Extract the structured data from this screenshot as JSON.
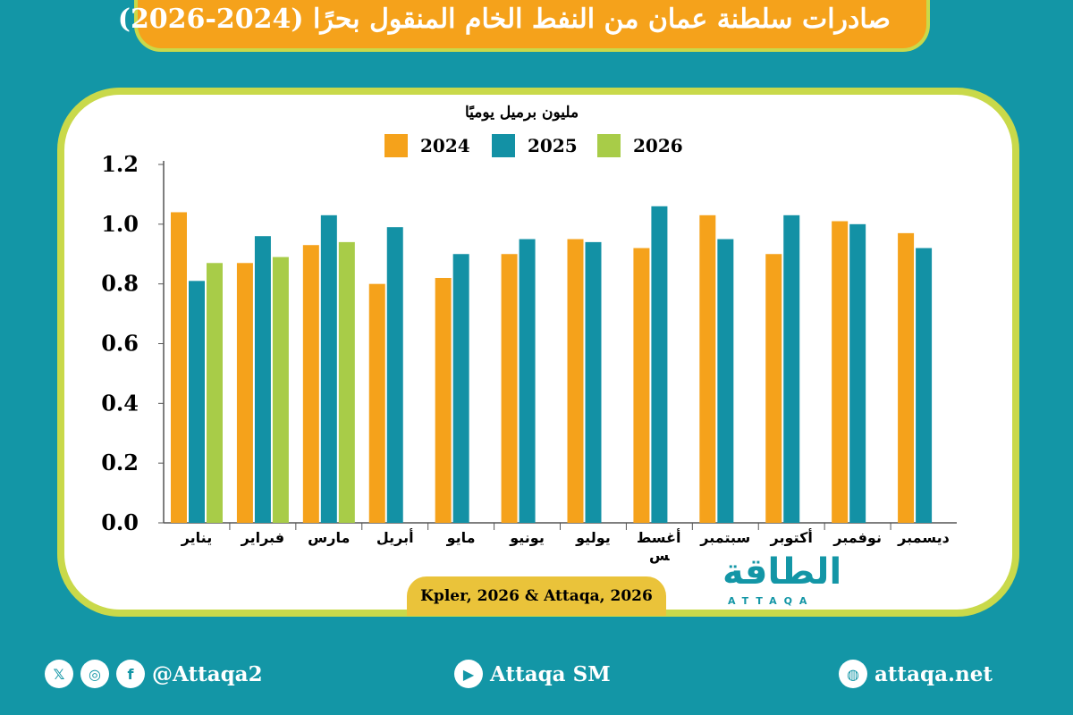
{
  "title": "صادرات سلطنة عمان من النفط الخام المنقول بحرًا (2024-2026)",
  "source": "Kpler, 2026 & Attaqa, 2026",
  "logo": {
    "text": "الطاقة",
    "sub": "ATTAQA"
  },
  "footer": {
    "social": "@Attaqa2",
    "youtube": "Attaqa SM",
    "website": "attaqa.net"
  },
  "chart_data": {
    "type": "bar",
    "ylabel": "مليون برميل يوميًا",
    "ylim": [
      0,
      1.2
    ],
    "yticks": [
      "0.0",
      "0.2",
      "0.4",
      "0.6",
      "0.8",
      "1.0",
      "1.2"
    ],
    "categories": [
      "يناير",
      "فبراير",
      "مارس",
      "أبريل",
      "مايو",
      "يونيو",
      "يوليو",
      "أغسطس",
      "سبتمبر",
      "أكتوبر",
      "نوفمبر",
      "ديسمبر"
    ],
    "series": [
      {
        "name": "2024",
        "color": "#f5a21b",
        "values": [
          1.04,
          0.87,
          0.93,
          0.8,
          0.82,
          0.9,
          0.95,
          0.92,
          1.03,
          0.9,
          1.01,
          0.97
        ]
      },
      {
        "name": "2025",
        "color": "#1391a5",
        "values": [
          0.81,
          0.96,
          1.03,
          0.99,
          0.9,
          0.95,
          0.94,
          1.06,
          0.95,
          1.03,
          1.0,
          0.92
        ]
      },
      {
        "name": "2026",
        "color": "#a8cc48",
        "values": [
          0.87,
          0.89,
          0.94,
          null,
          null,
          null,
          null,
          null,
          null,
          null,
          null,
          null
        ]
      }
    ],
    "legend": "top"
  }
}
